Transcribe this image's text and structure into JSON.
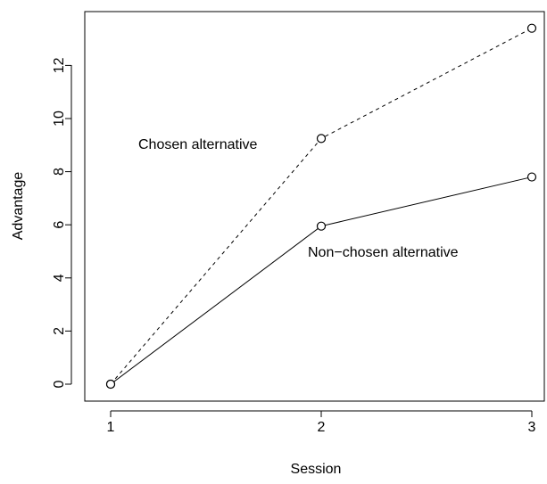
{
  "chart_data": {
    "type": "line",
    "xlabel": "Session",
    "ylabel": "Advantage",
    "xlim": [
      1,
      3
    ],
    "ylim": [
      0,
      13.4
    ],
    "x_ticks": [
      1,
      2,
      3
    ],
    "y_ticks": [
      0,
      2,
      4,
      6,
      8,
      10,
      12
    ],
    "grid": false,
    "legend": "none",
    "series": [
      {
        "name": "Chosen alternative",
        "x": [
          1,
          2,
          3
        ],
        "y": [
          0,
          9.25,
          13.4
        ],
        "line_style": "dashed",
        "marker": "open-circle",
        "color": "#000000"
      },
      {
        "name": "Non−chosen alternative",
        "x": [
          1,
          2,
          3
        ],
        "y": [
          0,
          5.95,
          7.8
        ],
        "line_style": "solid",
        "marker": "open-circle",
        "color": "#000000"
      }
    ]
  }
}
